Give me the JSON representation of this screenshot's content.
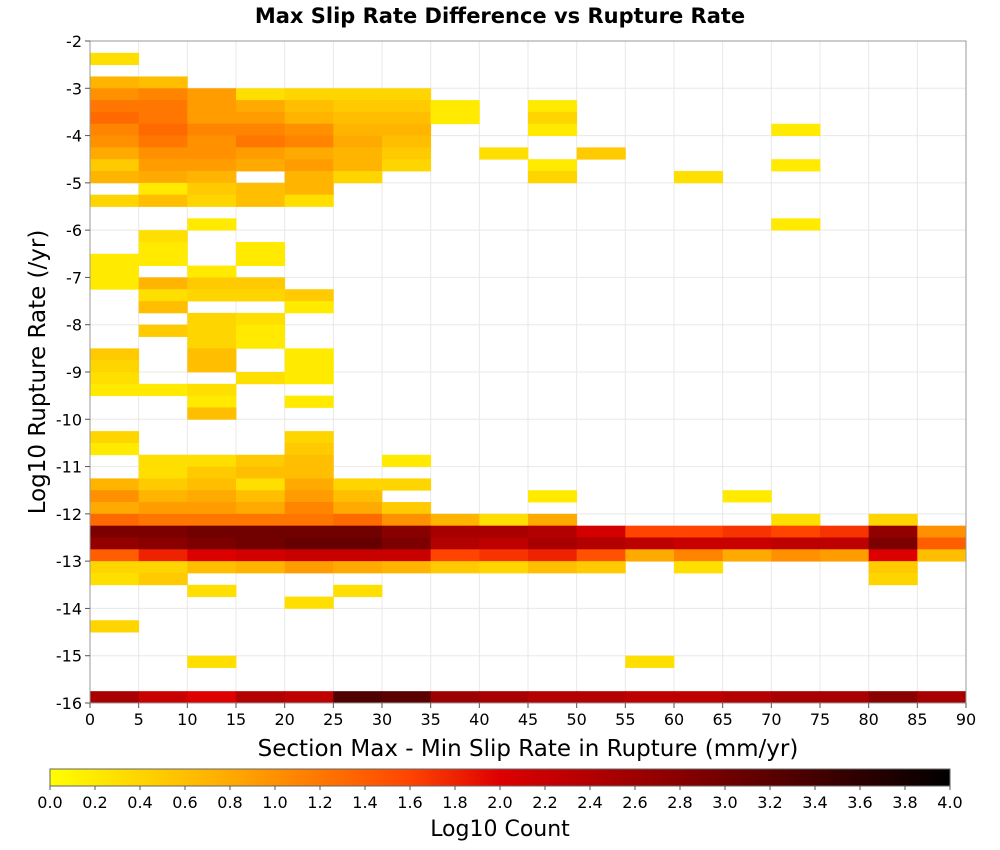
{
  "chart_data": {
    "type": "heatmap",
    "title": "Max Slip Rate Difference vs Rupture Rate",
    "xlabel": "Section Max - Min Slip Rate in Rupture (mm/yr)",
    "ylabel": "Log10 Rupture Rate (/yr)",
    "xlim": [
      0,
      90
    ],
    "ylim": [
      -16,
      -2
    ],
    "x_ticks": [
      "0",
      "5",
      "10",
      "15",
      "20",
      "25",
      "30",
      "35",
      "40",
      "45",
      "50",
      "55",
      "60",
      "65",
      "70",
      "75",
      "80",
      "85",
      "90"
    ],
    "y_ticks": [
      "-2",
      "-3",
      "-4",
      "-5",
      "-6",
      "-7",
      "-8",
      "-9",
      "-10",
      "-11",
      "-12",
      "-13",
      "-14",
      "-15",
      "-16"
    ],
    "x_bin_width": 5,
    "y_bin_width": 0.25,
    "grid": true,
    "colorbar": {
      "label": "Log10 Count",
      "range": [
        0,
        4
      ],
      "ticks": [
        "0.0",
        "0.2",
        "0.4",
        "0.6",
        "0.8",
        "1.0",
        "1.2",
        "1.4",
        "1.6",
        "1.8",
        "2.0",
        "2.2",
        "2.4",
        "2.6",
        "2.8",
        "3.0",
        "3.2",
        "3.4",
        "3.6",
        "3.8",
        "4.0"
      ],
      "stops": [
        "#ffff00",
        "#ffaa00",
        "#ff4400",
        "#dd0000",
        "#880000",
        "#000000"
      ]
    },
    "cells": [
      [
        0,
        -2.25,
        0.3
      ],
      [
        0,
        -2.75,
        0.7
      ],
      [
        5,
        -2.75,
        0.6
      ],
      [
        0,
        -3.0,
        1.0
      ],
      [
        5,
        -3.0,
        1.1
      ],
      [
        10,
        -3.0,
        0.9
      ],
      [
        15,
        -3.0,
        0.3
      ],
      [
        20,
        -3.0,
        0.4
      ],
      [
        25,
        -3.0,
        0.4
      ],
      [
        30,
        -3.0,
        0.4
      ],
      [
        0,
        -3.25,
        1.2
      ],
      [
        5,
        -3.25,
        1.2
      ],
      [
        10,
        -3.25,
        0.9
      ],
      [
        15,
        -3.25,
        0.8
      ],
      [
        20,
        -3.25,
        0.6
      ],
      [
        25,
        -3.25,
        0.5
      ],
      [
        30,
        -3.25,
        0.5
      ],
      [
        35,
        -3.25,
        0.2
      ],
      [
        45,
        -3.25,
        0.2
      ],
      [
        0,
        -3.5,
        1.3
      ],
      [
        5,
        -3.5,
        1.2
      ],
      [
        10,
        -3.5,
        0.9
      ],
      [
        15,
        -3.5,
        0.9
      ],
      [
        20,
        -3.5,
        0.7
      ],
      [
        25,
        -3.5,
        0.6
      ],
      [
        30,
        -3.5,
        0.6
      ],
      [
        35,
        -3.5,
        0.2
      ],
      [
        45,
        -3.5,
        0.4
      ],
      [
        0,
        -3.75,
        1.1
      ],
      [
        5,
        -3.75,
        1.3
      ],
      [
        10,
        -3.75,
        1.1
      ],
      [
        15,
        -3.75,
        1.1
      ],
      [
        20,
        -3.75,
        1.0
      ],
      [
        25,
        -3.75,
        0.7
      ],
      [
        30,
        -3.75,
        0.7
      ],
      [
        45,
        -3.75,
        0.2
      ],
      [
        70,
        -3.75,
        0.2
      ],
      [
        0,
        -4.0,
        1.0
      ],
      [
        5,
        -4.0,
        1.2
      ],
      [
        10,
        -4.0,
        1.0
      ],
      [
        15,
        -4.0,
        1.2
      ],
      [
        20,
        -4.0,
        1.1
      ],
      [
        25,
        -4.0,
        0.8
      ],
      [
        30,
        -4.0,
        0.6
      ],
      [
        0,
        -4.25,
        0.8
      ],
      [
        5,
        -4.25,
        1.0
      ],
      [
        10,
        -4.25,
        1.0
      ],
      [
        15,
        -4.25,
        0.9
      ],
      [
        20,
        -4.25,
        0.8
      ],
      [
        25,
        -4.25,
        0.7
      ],
      [
        30,
        -4.25,
        0.5
      ],
      [
        40,
        -4.25,
        0.3
      ],
      [
        50,
        -4.25,
        0.5
      ],
      [
        0,
        -4.5,
        0.5
      ],
      [
        5,
        -4.5,
        0.9
      ],
      [
        10,
        -4.5,
        0.9
      ],
      [
        15,
        -4.5,
        0.8
      ],
      [
        20,
        -4.5,
        0.9
      ],
      [
        25,
        -4.5,
        0.7
      ],
      [
        30,
        -4.5,
        0.4
      ],
      [
        45,
        -4.5,
        0.2
      ],
      [
        70,
        -4.5,
        0.2
      ],
      [
        0,
        -4.75,
        0.7
      ],
      [
        5,
        -4.75,
        0.8
      ],
      [
        10,
        -4.75,
        0.7
      ],
      [
        20,
        -4.75,
        0.7
      ],
      [
        25,
        -4.75,
        0.4
      ],
      [
        45,
        -4.75,
        0.4
      ],
      [
        60,
        -4.75,
        0.3
      ],
      [
        5,
        -5.0,
        0.2
      ],
      [
        10,
        -5.0,
        0.5
      ],
      [
        15,
        -5.0,
        0.6
      ],
      [
        20,
        -5.0,
        0.7
      ],
      [
        0,
        -5.25,
        0.4
      ],
      [
        5,
        -5.25,
        0.6
      ],
      [
        10,
        -5.25,
        0.4
      ],
      [
        15,
        -5.25,
        0.6
      ],
      [
        20,
        -5.25,
        0.3
      ],
      [
        10,
        -5.75,
        0.2
      ],
      [
        70,
        -5.75,
        0.2
      ],
      [
        5,
        -6.0,
        0.3
      ],
      [
        5,
        -6.25,
        0.2
      ],
      [
        15,
        -6.25,
        0.2
      ],
      [
        0,
        -6.5,
        0.2
      ],
      [
        5,
        -6.5,
        0.2
      ],
      [
        15,
        -6.5,
        0.2
      ],
      [
        0,
        -6.75,
        0.2
      ],
      [
        10,
        -6.75,
        0.2
      ],
      [
        0,
        -7.0,
        0.2
      ],
      [
        5,
        -7.0,
        0.7
      ],
      [
        10,
        -7.0,
        0.5
      ],
      [
        15,
        -7.0,
        0.5
      ],
      [
        5,
        -7.25,
        0.3
      ],
      [
        10,
        -7.25,
        0.4
      ],
      [
        15,
        -7.25,
        0.4
      ],
      [
        20,
        -7.25,
        0.5
      ],
      [
        5,
        -7.5,
        0.6
      ],
      [
        20,
        -7.5,
        0.2
      ],
      [
        10,
        -7.75,
        0.4
      ],
      [
        15,
        -7.75,
        0.3
      ],
      [
        5,
        -8.0,
        0.5
      ],
      [
        10,
        -8.0,
        0.4
      ],
      [
        15,
        -8.0,
        0.2
      ],
      [
        10,
        -8.25,
        0.4
      ],
      [
        15,
        -8.25,
        0.2
      ],
      [
        0,
        -8.5,
        0.5
      ],
      [
        10,
        -8.5,
        0.6
      ],
      [
        20,
        -8.5,
        0.2
      ],
      [
        0,
        -8.75,
        0.4
      ],
      [
        10,
        -8.75,
        0.6
      ],
      [
        20,
        -8.75,
        0.2
      ],
      [
        0,
        -9.0,
        0.3
      ],
      [
        15,
        -9.0,
        0.3
      ],
      [
        20,
        -9.0,
        0.2
      ],
      [
        0,
        -9.25,
        0.2
      ],
      [
        5,
        -9.25,
        0.2
      ],
      [
        10,
        -9.25,
        0.3
      ],
      [
        10,
        -9.5,
        0.2
      ],
      [
        20,
        -9.5,
        0.2
      ],
      [
        10,
        -9.75,
        0.6
      ],
      [
        0,
        -10.25,
        0.4
      ],
      [
        20,
        -10.25,
        0.4
      ],
      [
        0,
        -10.5,
        0.2
      ],
      [
        20,
        -10.5,
        0.5
      ],
      [
        5,
        -10.75,
        0.3
      ],
      [
        10,
        -10.75,
        0.3
      ],
      [
        15,
        -10.75,
        0.5
      ],
      [
        20,
        -10.75,
        0.6
      ],
      [
        30,
        -10.75,
        0.2
      ],
      [
        5,
        -11.0,
        0.3
      ],
      [
        10,
        -11.0,
        0.5
      ],
      [
        15,
        -11.0,
        0.6
      ],
      [
        20,
        -11.0,
        0.6
      ],
      [
        0,
        -11.25,
        0.7
      ],
      [
        5,
        -11.25,
        0.5
      ],
      [
        10,
        -11.25,
        0.6
      ],
      [
        15,
        -11.25,
        0.3
      ],
      [
        20,
        -11.25,
        0.8
      ],
      [
        25,
        -11.25,
        0.4
      ],
      [
        30,
        -11.25,
        0.4
      ],
      [
        0,
        -11.5,
        1.0
      ],
      [
        5,
        -11.5,
        0.7
      ],
      [
        10,
        -11.5,
        0.8
      ],
      [
        15,
        -11.5,
        0.6
      ],
      [
        20,
        -11.5,
        0.9
      ],
      [
        25,
        -11.5,
        0.6
      ],
      [
        45,
        -11.5,
        0.2
      ],
      [
        65,
        -11.5,
        0.2
      ],
      [
        0,
        -11.75,
        0.8
      ],
      [
        5,
        -11.75,
        0.9
      ],
      [
        10,
        -11.75,
        0.9
      ],
      [
        15,
        -11.75,
        0.8
      ],
      [
        20,
        -11.75,
        1.1
      ],
      [
        25,
        -11.75,
        0.8
      ],
      [
        30,
        -11.75,
        0.5
      ],
      [
        0,
        -12.0,
        1.3
      ],
      [
        5,
        -12.0,
        1.2
      ],
      [
        10,
        -12.0,
        1.2
      ],
      [
        15,
        -12.0,
        1.2
      ],
      [
        20,
        -12.0,
        1.2
      ],
      [
        25,
        -12.0,
        1.3
      ],
      [
        30,
        -12.0,
        1.0
      ],
      [
        35,
        -12.0,
        0.7
      ],
      [
        40,
        -12.0,
        0.3
      ],
      [
        45,
        -12.0,
        0.8
      ],
      [
        70,
        -12.0,
        0.3
      ],
      [
        80,
        -12.0,
        0.4
      ],
      [
        0,
        -12.25,
        2.9
      ],
      [
        5,
        -12.25,
        2.9
      ],
      [
        10,
        -12.25,
        3.0
      ],
      [
        15,
        -12.25,
        3.0
      ],
      [
        20,
        -12.25,
        3.0
      ],
      [
        25,
        -12.25,
        3.0
      ],
      [
        30,
        -12.25,
        2.8
      ],
      [
        35,
        -12.25,
        2.5
      ],
      [
        40,
        -12.25,
        2.5
      ],
      [
        45,
        -12.25,
        2.4
      ],
      [
        50,
        -12.25,
        2.1
      ],
      [
        55,
        -12.25,
        1.6
      ],
      [
        60,
        -12.25,
        1.6
      ],
      [
        65,
        -12.25,
        1.7
      ],
      [
        70,
        -12.25,
        1.6
      ],
      [
        75,
        -12.25,
        1.7
      ],
      [
        80,
        -12.25,
        2.7
      ],
      [
        85,
        -12.25,
        1.0
      ],
      [
        0,
        -12.5,
        2.7
      ],
      [
        5,
        -12.5,
        2.8
      ],
      [
        10,
        -12.5,
        2.9
      ],
      [
        15,
        -12.5,
        3.0
      ],
      [
        20,
        -12.5,
        3.1
      ],
      [
        25,
        -12.5,
        3.1
      ],
      [
        30,
        -12.5,
        2.9
      ],
      [
        35,
        -12.5,
        2.4
      ],
      [
        40,
        -12.5,
        2.3
      ],
      [
        45,
        -12.5,
        2.5
      ],
      [
        50,
        -12.5,
        2.4
      ],
      [
        55,
        -12.5,
        2.3
      ],
      [
        60,
        -12.5,
        2.2
      ],
      [
        65,
        -12.5,
        2.2
      ],
      [
        70,
        -12.5,
        2.3
      ],
      [
        75,
        -12.5,
        2.3
      ],
      [
        80,
        -12.5,
        2.9
      ],
      [
        85,
        -12.5,
        1.4
      ],
      [
        0,
        -12.75,
        1.4
      ],
      [
        5,
        -12.75,
        1.8
      ],
      [
        10,
        -12.75,
        2.0
      ],
      [
        15,
        -12.75,
        2.1
      ],
      [
        20,
        -12.75,
        2.2
      ],
      [
        25,
        -12.75,
        2.2
      ],
      [
        30,
        -12.75,
        2.2
      ],
      [
        35,
        -12.75,
        1.6
      ],
      [
        40,
        -12.75,
        1.7
      ],
      [
        45,
        -12.75,
        1.8
      ],
      [
        50,
        -12.75,
        1.5
      ],
      [
        55,
        -12.75,
        0.8
      ],
      [
        60,
        -12.75,
        1.1
      ],
      [
        65,
        -12.75,
        0.8
      ],
      [
        70,
        -12.75,
        1.0
      ],
      [
        75,
        -12.75,
        0.9
      ],
      [
        80,
        -12.75,
        2.0
      ],
      [
        85,
        -12.75,
        0.6
      ],
      [
        0,
        -13.0,
        0.4
      ],
      [
        5,
        -13.0,
        0.4
      ],
      [
        10,
        -13.0,
        0.6
      ],
      [
        15,
        -13.0,
        0.7
      ],
      [
        20,
        -13.0,
        0.9
      ],
      [
        25,
        -13.0,
        0.8
      ],
      [
        30,
        -13.0,
        0.7
      ],
      [
        35,
        -13.0,
        0.5
      ],
      [
        40,
        -13.0,
        0.4
      ],
      [
        45,
        -13.0,
        0.6
      ],
      [
        50,
        -13.0,
        0.5
      ],
      [
        60,
        -13.0,
        0.3
      ],
      [
        80,
        -13.0,
        0.5
      ],
      [
        0,
        -13.25,
        0.3
      ],
      [
        5,
        -13.25,
        0.5
      ],
      [
        80,
        -13.25,
        0.4
      ],
      [
        10,
        -13.5,
        0.3
      ],
      [
        25,
        -13.5,
        0.3
      ],
      [
        20,
        -13.75,
        0.3
      ],
      [
        0,
        -14.25,
        0.4
      ],
      [
        10,
        -15.0,
        0.3
      ],
      [
        55,
        -15.0,
        0.3
      ],
      [
        0,
        -15.75,
        2.5
      ],
      [
        5,
        -15.75,
        2.2
      ],
      [
        10,
        -15.75,
        2.0
      ],
      [
        15,
        -15.75,
        2.4
      ],
      [
        20,
        -15.75,
        2.3
      ],
      [
        25,
        -15.75,
        3.3
      ],
      [
        30,
        -15.75,
        3.2
      ],
      [
        35,
        -15.75,
        2.6
      ],
      [
        40,
        -15.75,
        2.5
      ],
      [
        45,
        -15.75,
        2.4
      ],
      [
        50,
        -15.75,
        2.4
      ],
      [
        55,
        -15.75,
        2.3
      ],
      [
        60,
        -15.75,
        2.3
      ],
      [
        65,
        -15.75,
        2.4
      ],
      [
        70,
        -15.75,
        2.5
      ],
      [
        75,
        -15.75,
        2.5
      ],
      [
        80,
        -15.75,
        2.8
      ],
      [
        85,
        -15.75,
        2.5
      ]
    ]
  }
}
